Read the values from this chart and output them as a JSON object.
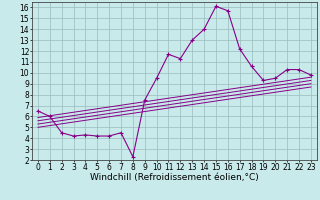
{
  "xlabel": "Windchill (Refroidissement éolien,°C)",
  "background_color": "#c8eaeb",
  "line_color": "#880088",
  "grid_color": "#99bbbb",
  "xlim": [
    -0.5,
    23.5
  ],
  "ylim": [
    2,
    16.5
  ],
  "xticks": [
    0,
    1,
    2,
    3,
    4,
    5,
    6,
    7,
    8,
    9,
    10,
    11,
    12,
    13,
    14,
    15,
    16,
    17,
    18,
    19,
    20,
    21,
    22,
    23
  ],
  "yticks": [
    2,
    3,
    4,
    5,
    6,
    7,
    8,
    9,
    10,
    11,
    12,
    13,
    14,
    15,
    16
  ],
  "main_x": [
    0,
    1,
    2,
    3,
    4,
    5,
    6,
    7,
    8,
    9,
    10,
    11,
    12,
    13,
    14,
    15,
    16,
    17,
    18,
    19,
    20,
    21,
    22,
    23
  ],
  "main_y": [
    6.5,
    6.0,
    4.5,
    4.2,
    4.3,
    4.2,
    4.2,
    4.5,
    2.3,
    7.5,
    9.5,
    11.7,
    11.3,
    13.0,
    14.0,
    16.1,
    15.7,
    12.2,
    10.6,
    9.3,
    9.5,
    10.3,
    10.3,
    9.8
  ],
  "reg_lines": [
    {
      "x0": 0,
      "y0": 5.0,
      "x1": 23,
      "y1": 8.7
    },
    {
      "x0": 0,
      "y0": 5.3,
      "x1": 23,
      "y1": 9.0
    },
    {
      "x0": 0,
      "y0": 5.6,
      "x1": 23,
      "y1": 9.3
    },
    {
      "x0": 0,
      "y0": 5.9,
      "x1": 23,
      "y1": 9.6
    }
  ],
  "tick_fontsize": 5.5,
  "label_fontsize": 6.5
}
